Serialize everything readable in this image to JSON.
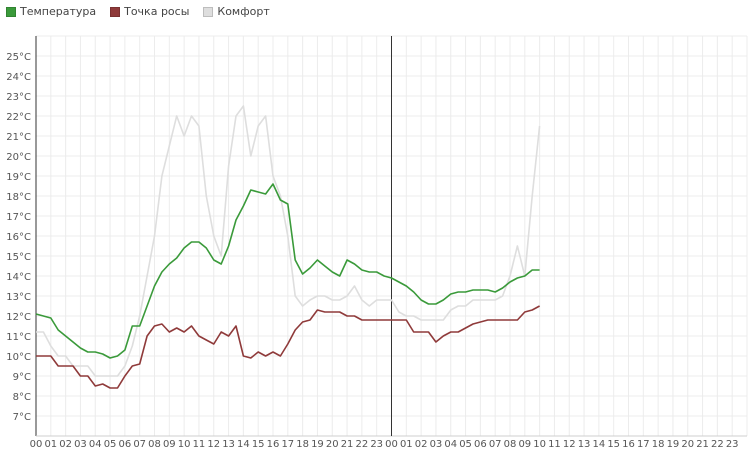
{
  "legend": {
    "items": [
      {
        "label": "Температура",
        "color": "#3a9a3a"
      },
      {
        "label": "Точка росы",
        "color": "#8f3a3a"
      },
      {
        "label": "Комфорт",
        "color": "#dedede"
      }
    ]
  },
  "chart_data": {
    "type": "line",
    "title": "",
    "xlabel": "",
    "ylabel": "",
    "ylim": [
      6,
      26
    ],
    "y_ticks": [
      "7°C",
      "8°C",
      "9°C",
      "10°C",
      "11°C",
      "12°C",
      "13°C",
      "14°C",
      "15°C",
      "16°C",
      "17°C",
      "18°C",
      "19°C",
      "20°C",
      "21°C",
      "22°C",
      "23°C",
      "24°C",
      "25°C"
    ],
    "x_ticks": [
      "00",
      "01",
      "02",
      "03",
      "04",
      "05",
      "06",
      "07",
      "08",
      "09",
      "10",
      "11",
      "12",
      "13",
      "14",
      "15",
      "16",
      "17",
      "18",
      "19",
      "20",
      "21",
      "22",
      "23",
      "00",
      "01",
      "02",
      "03",
      "04",
      "05",
      "06",
      "07",
      "08",
      "09",
      "10",
      "11",
      "12",
      "13",
      "14",
      "15",
      "16",
      "17",
      "18",
      "19",
      "20",
      "21",
      "22",
      "23"
    ],
    "x_unit": "hours",
    "day_separator_hour": 24,
    "grid": true,
    "legend_position": "top-left",
    "series": [
      {
        "name": "Температура",
        "color": "#3a9a3a",
        "x": [
          0,
          0.5,
          1,
          1.5,
          2,
          2.5,
          3,
          3.5,
          4,
          4.5,
          5,
          5.5,
          6,
          6.5,
          7,
          7.5,
          8,
          8.5,
          9,
          9.5,
          10,
          10.5,
          11,
          11.5,
          12,
          12.5,
          13,
          13.5,
          14,
          14.5,
          15,
          15.5,
          16,
          16.5,
          17,
          17.5,
          18,
          18.5,
          19,
          19.5,
          20,
          20.5,
          21,
          21.5,
          22,
          22.5,
          23,
          23.5,
          24,
          24.5,
          25,
          25.5,
          26,
          26.5,
          27,
          27.5,
          28,
          28.5,
          29,
          29.5,
          30,
          30.5,
          31,
          31.5,
          32,
          32.5,
          33,
          33.5,
          34
        ],
        "y": [
          12.1,
          12.0,
          11.9,
          11.3,
          11.0,
          10.7,
          10.4,
          10.2,
          10.2,
          10.1,
          9.9,
          10.0,
          10.3,
          11.5,
          11.5,
          12.5,
          13.5,
          14.2,
          14.6,
          14.9,
          15.4,
          15.7,
          15.7,
          15.4,
          14.8,
          14.6,
          15.5,
          16.8,
          17.5,
          18.3,
          18.2,
          18.1,
          18.6,
          17.8,
          17.6,
          14.8,
          14.1,
          14.4,
          14.8,
          14.5,
          14.2,
          14.0,
          14.8,
          14.6,
          14.3,
          14.2,
          14.2,
          14.0,
          13.9,
          13.7,
          13.5,
          13.2,
          12.8,
          12.6,
          12.6,
          12.8,
          13.1,
          13.2,
          13.2,
          13.3,
          13.3,
          13.3,
          13.2,
          13.4,
          13.7,
          13.9,
          14.0,
          14.3,
          14.3
        ]
      },
      {
        "name": "Точка росы",
        "color": "#8f3a3a",
        "x": [
          0,
          0.5,
          1,
          1.5,
          2,
          2.5,
          3,
          3.5,
          4,
          4.5,
          5,
          5.5,
          6,
          6.5,
          7,
          7.5,
          8,
          8.5,
          9,
          9.5,
          10,
          10.5,
          11,
          11.5,
          12,
          12.5,
          13,
          13.5,
          14,
          14.5,
          15,
          15.5,
          16,
          16.5,
          17,
          17.5,
          18,
          18.5,
          19,
          19.5,
          20,
          20.5,
          21,
          21.5,
          22,
          22.5,
          23,
          23.5,
          24,
          24.5,
          25,
          25.5,
          26,
          26.5,
          27,
          27.5,
          28,
          28.5,
          29,
          29.5,
          30,
          30.5,
          31,
          31.5,
          32,
          32.5,
          33,
          33.5,
          34
        ],
        "y": [
          10.0,
          10.0,
          10.0,
          9.5,
          9.5,
          9.5,
          9.0,
          9.0,
          8.5,
          8.6,
          8.4,
          8.4,
          9.0,
          9.5,
          9.6,
          11.0,
          11.5,
          11.6,
          11.2,
          11.4,
          11.2,
          11.5,
          11.0,
          10.8,
          10.6,
          11.2,
          11.0,
          11.5,
          10.0,
          9.9,
          10.2,
          10.0,
          10.2,
          10.0,
          10.6,
          11.3,
          11.7,
          11.8,
          12.3,
          12.2,
          12.2,
          12.2,
          12.0,
          12.0,
          11.8,
          11.8,
          11.8,
          11.8,
          11.8,
          11.8,
          11.8,
          11.2,
          11.2,
          11.2,
          10.7,
          11.0,
          11.2,
          11.2,
          11.4,
          11.6,
          11.7,
          11.8,
          11.8,
          11.8,
          11.8,
          11.8,
          12.2,
          12.3,
          12.5
        ]
      },
      {
        "name": "Комфорт",
        "color": "#dedede",
        "x": [
          0,
          0.5,
          1,
          1.5,
          2,
          2.5,
          3,
          3.5,
          4,
          4.5,
          5,
          5.5,
          6,
          6.5,
          7,
          7.5,
          8,
          8.5,
          9,
          9.5,
          10,
          10.5,
          11,
          11.5,
          12,
          12.5,
          13,
          13.5,
          14,
          14.5,
          15,
          15.5,
          16,
          16.5,
          17,
          17.5,
          18,
          18.5,
          19,
          19.5,
          20,
          20.5,
          21,
          21.5,
          22,
          22.5,
          23,
          23.5,
          24,
          24.5,
          25,
          25.5,
          26,
          26.5,
          27,
          27.5,
          28,
          28.5,
          29,
          29.5,
          30,
          30.5,
          31,
          31.5,
          32,
          32.5,
          33,
          33.5,
          34
        ],
        "y": [
          11.2,
          11.2,
          10.5,
          10.0,
          10.0,
          9.5,
          9.5,
          9.5,
          9.0,
          9.0,
          9.0,
          9.0,
          9.5,
          10.5,
          12.0,
          14.0,
          16.0,
          19.0,
          20.5,
          22.0,
          21.0,
          22.0,
          21.5,
          18.0,
          16.0,
          15.0,
          19.5,
          22.0,
          22.5,
          20.0,
          21.5,
          22.0,
          19.0,
          18.0,
          16.0,
          13.0,
          12.5,
          12.8,
          13.0,
          13.0,
          12.8,
          12.8,
          13.0,
          13.5,
          12.8,
          12.5,
          12.8,
          12.8,
          12.8,
          12.2,
          12.0,
          12.0,
          11.8,
          11.8,
          11.8,
          11.8,
          12.3,
          12.5,
          12.5,
          12.8,
          12.8,
          12.8,
          12.8,
          13.0,
          14.0,
          15.5,
          14.0,
          18.0,
          21.5
        ]
      }
    ]
  }
}
